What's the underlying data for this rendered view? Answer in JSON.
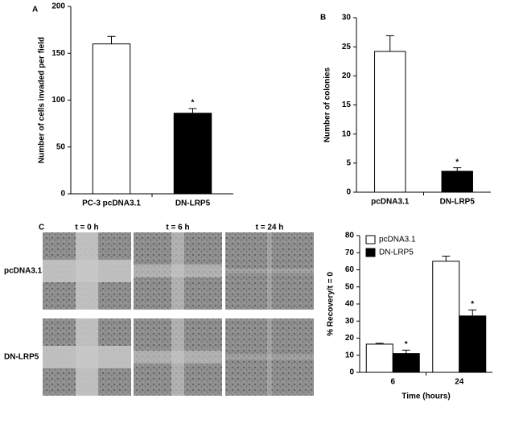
{
  "chart_data": [
    {
      "type": "bar",
      "panel": "A",
      "ylabel": "Number of cells invaded per field",
      "categories": [
        "PC-3 pcDNA3.1",
        "DN-LRP5"
      ],
      "values": [
        160,
        86
      ],
      "errors": [
        8,
        5
      ],
      "colors": [
        "#ffffff",
        "#000000"
      ],
      "significance": [
        null,
        "*"
      ],
      "ylim": [
        0,
        200
      ],
      "yticks": [
        0,
        50,
        100,
        150,
        200
      ]
    },
    {
      "type": "bar",
      "panel": "B",
      "ylabel": "Number of colonies",
      "categories": [
        "pcDNA3.1",
        "DN-LRP5"
      ],
      "values": [
        24.2,
        3.6
      ],
      "errors": [
        2.7,
        0.6
      ],
      "colors": [
        "#ffffff",
        "#000000"
      ],
      "significance": [
        null,
        "*"
      ],
      "ylim": [
        0,
        30
      ],
      "yticks": [
        0,
        5,
        10,
        15,
        20,
        25,
        30
      ]
    },
    {
      "type": "bar",
      "ylabel": "% Recovery/t = 0",
      "xlabel": "Time (hours)",
      "categories": [
        "6",
        "24"
      ],
      "legend": "upper-left",
      "series": [
        {
          "name": "pcDNA3.1",
          "color": "#ffffff",
          "values": [
            16.5,
            65
          ],
          "errors": [
            0.5,
            3
          ],
          "significance": [
            null,
            null
          ]
        },
        {
          "name": "DN-LRP5",
          "color": "#000000",
          "values": [
            11,
            33
          ],
          "errors": [
            2,
            3.5
          ],
          "significance": [
            "*",
            "*"
          ]
        }
      ],
      "ylim": [
        0,
        80
      ],
      "yticks": [
        0,
        10,
        20,
        30,
        40,
        50,
        60,
        70,
        80
      ]
    }
  ],
  "wound_healing": {
    "panel": "C",
    "times": [
      "t = 0 h",
      "t = 6 h",
      "t = 24 h"
    ],
    "rows": [
      "pcDNA3.1",
      "DN-LRP5"
    ]
  }
}
